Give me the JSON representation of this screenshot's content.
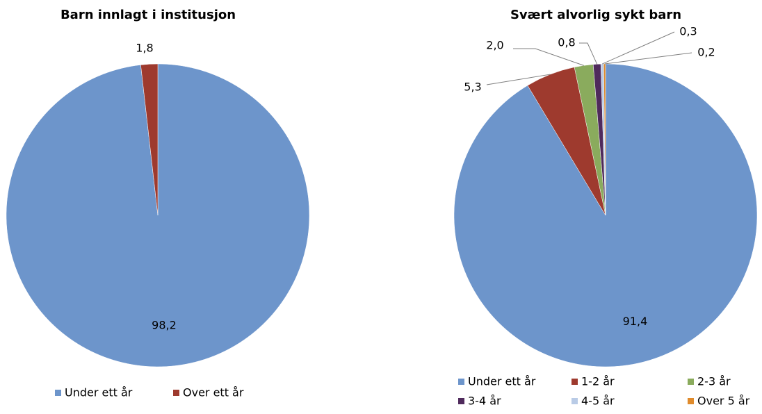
{
  "chart_data": [
    {
      "type": "pie",
      "title": "Barn innlagt i institusjon",
      "categories": [
        "Under ett år",
        "Over ett år"
      ],
      "values": [
        98.2,
        1.8
      ],
      "value_labels": [
        "98,2",
        "1,8"
      ],
      "colors": [
        "#6d95cb",
        "#9e3a2e"
      ]
    },
    {
      "type": "pie",
      "title": "Svært alvorlig sykt barn",
      "categories": [
        "Under ett år",
        "1-2 år",
        "2-3 år",
        "3-4 år",
        "4-5 år",
        "Over 5 år"
      ],
      "values": [
        91.4,
        5.3,
        2.0,
        0.8,
        0.3,
        0.2
      ],
      "value_labels": [
        "91,4",
        "5,3",
        "2,0",
        "0,8",
        "0,3",
        "0,2"
      ],
      "colors": [
        "#6d95cb",
        "#9e3a2e",
        "#8aab5d",
        "#4f2a5c",
        "#b9cbe6",
        "#e08b2c"
      ]
    }
  ]
}
